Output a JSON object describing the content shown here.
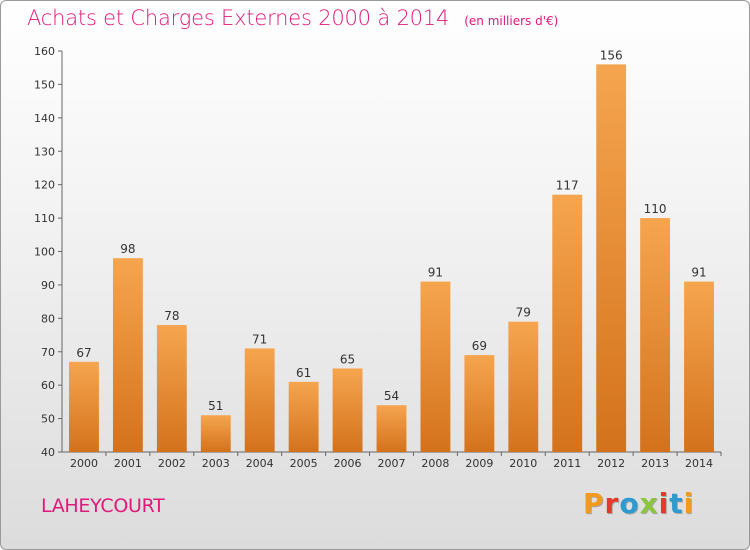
{
  "title": "Achats et Charges Externes 2000 à 2014",
  "unit_label": "(en milliers d'€)",
  "commune": "LAHEYCOURT",
  "logo": {
    "letters": [
      "P",
      "r",
      "o",
      "x",
      "i",
      "t",
      "i"
    ],
    "colors": [
      "#f39a1e",
      "#e8372c",
      "#2e9ad0",
      "#8cc63f",
      "#e8372c",
      "#2e9ad0",
      "#f39a1e"
    ]
  },
  "colors": {
    "title": "#e0197a",
    "bar_top": "#f6a54f",
    "bar_bottom": "#d4721c"
  },
  "chart_data": {
    "type": "bar",
    "title": "Achats et Charges Externes 2000 à 2014",
    "categories": [
      "2000",
      "2001",
      "2002",
      "2003",
      "2004",
      "2005",
      "2006",
      "2007",
      "2008",
      "2009",
      "2010",
      "2011",
      "2012",
      "2013",
      "2014"
    ],
    "values": [
      67,
      98,
      78,
      51,
      71,
      61,
      65,
      54,
      91,
      69,
      79,
      117,
      156,
      110,
      91
    ],
    "ylim": [
      40,
      160
    ],
    "yticks": [
      40,
      50,
      60,
      70,
      80,
      90,
      100,
      110,
      120,
      130,
      140,
      150,
      160
    ],
    "grid": false,
    "data_labels": true
  }
}
